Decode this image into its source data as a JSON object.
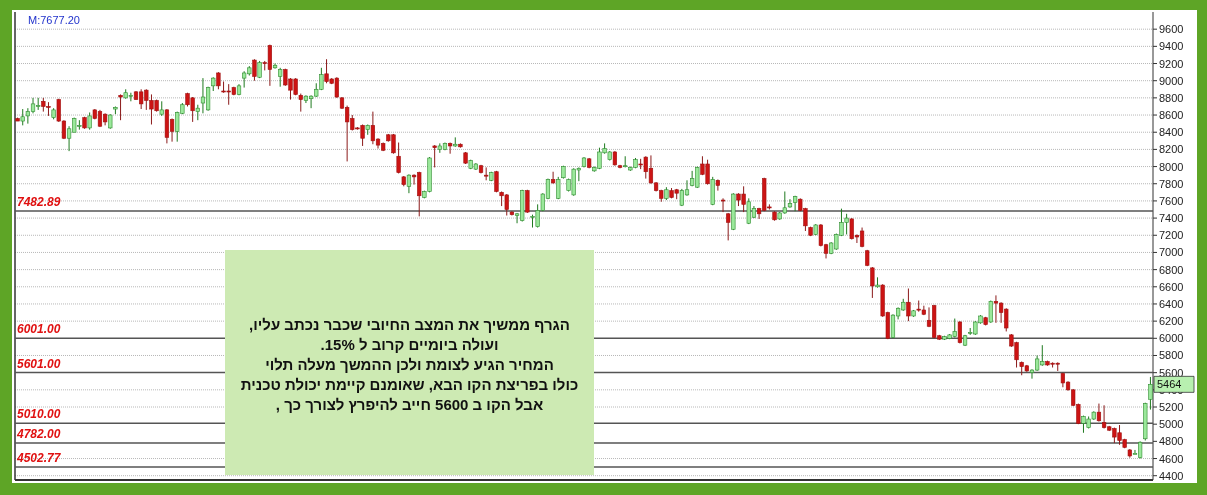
{
  "chart_data": {
    "type": "candlestick",
    "categories": [
      null,
      null,
      null,
      null,
      null,
      null,
      null,
      null,
      null,
      null,
      null,
      null,
      null,
      null,
      null,
      null,
      null,
      null,
      null,
      null,
      null,
      null,
      null,
      null,
      null,
      null,
      null,
      null,
      null,
      null,
      null,
      null,
      null,
      null,
      null,
      null,
      null,
      null,
      null,
      null,
      null,
      null,
      null,
      null,
      null,
      null,
      null,
      null,
      null,
      null,
      null,
      null,
      null,
      null,
      null,
      null,
      null,
      null,
      null,
      null,
      null,
      null,
      null,
      null,
      null,
      null,
      null,
      null,
      null,
      null,
      null,
      null,
      null,
      null,
      null,
      null,
      null,
      null,
      null,
      null,
      null,
      null,
      null,
      null,
      null,
      null,
      null,
      null,
      null,
      null,
      null,
      null,
      null,
      null,
      null,
      null,
      null,
      null,
      null,
      null,
      null,
      null,
      null,
      null,
      null,
      null,
      null,
      null,
      null,
      null,
      null,
      null,
      null,
      null,
      null,
      null,
      null,
      null,
      null,
      null,
      null,
      null,
      null,
      null,
      null,
      null,
      null,
      null,
      null,
      null,
      null,
      null,
      null,
      null,
      null,
      null,
      null,
      null,
      null,
      null,
      null,
      null,
      null,
      null,
      null,
      null,
      null,
      null,
      null,
      null,
      null,
      null,
      null,
      null,
      null,
      null,
      null,
      null,
      null,
      null,
      null,
      null,
      null,
      null,
      null,
      null,
      null,
      null,
      null,
      null,
      null,
      null,
      null,
      null,
      null,
      null,
      null,
      null,
      null,
      null,
      null,
      null,
      null,
      null,
      null,
      null,
      null,
      null,
      null,
      null,
      null,
      null,
      null,
      null,
      null,
      null,
      null,
      null,
      null,
      null,
      null,
      null,
      null,
      null,
      null,
      null,
      null,
      null,
      null,
      null,
      null,
      null,
      null,
      null,
      null,
      null,
      null,
      null,
      null,
      null,
      null
    ],
    "ohlc": [
      [
        8560,
        8570,
        8530,
        8530
      ],
      [
        8530,
        8670,
        8480,
        8580
      ],
      [
        8590,
        8680,
        8500,
        8640
      ],
      [
        8640,
        8800,
        8620,
        8730
      ],
      [
        8700,
        8800,
        8660,
        8710
      ],
      [
        8760,
        8800,
        8640,
        8700
      ],
      [
        8700,
        8750,
        8590,
        8690
      ],
      [
        8570,
        8680,
        8550,
        8660
      ],
      [
        8780,
        8790,
        8520,
        8530
      ],
      [
        8530,
        8540,
        8320,
        8330
      ],
      [
        8330,
        8470,
        8180,
        8440
      ],
      [
        8400,
        8570,
        8400,
        8560
      ],
      [
        8470,
        8540,
        8430,
        8480
      ],
      [
        8570,
        8580,
        8440,
        8450
      ],
      [
        8450,
        8630,
        8430,
        8590
      ],
      [
        8660,
        8670,
        8550,
        8560
      ],
      [
        8640,
        8660,
        8460,
        8470
      ],
      [
        8610,
        8620,
        8480,
        8520
      ],
      [
        8450,
        8610,
        8440,
        8600
      ],
      [
        8670,
        8700,
        8610,
        8690
      ],
      [
        8830,
        8840,
        8540,
        8810
      ],
      [
        8800,
        8900,
        8790,
        8860
      ],
      [
        8820,
        8860,
        8760,
        8830
      ],
      [
        8870,
        8880,
        8780,
        8780
      ],
      [
        8870,
        8900,
        8670,
        8730
      ],
      [
        8890,
        8900,
        8660,
        8770
      ],
      [
        8770,
        8840,
        8490,
        8670
      ],
      [
        8770,
        8780,
        8640,
        8650
      ],
      [
        8610,
        8760,
        8590,
        8660
      ],
      [
        8660,
        8670,
        8270,
        8340
      ],
      [
        8550,
        8560,
        8290,
        8410
      ],
      [
        8410,
        8640,
        8290,
        8630
      ],
      [
        8620,
        8740,
        8610,
        8720
      ],
      [
        8850,
        8860,
        8700,
        8720
      ],
      [
        8800,
        8810,
        8520,
        8650
      ],
      [
        8640,
        8720,
        8540,
        8680
      ],
      [
        8740,
        9030,
        8620,
        8810
      ],
      [
        8660,
        8930,
        8650,
        8920
      ],
      [
        8940,
        9040,
        8880,
        9030
      ],
      [
        9090,
        9100,
        8900,
        8940
      ],
      [
        8880,
        8990,
        8860,
        8870
      ],
      [
        8880,
        8960,
        8720,
        8870
      ],
      [
        8920,
        8930,
        8830,
        8840
      ],
      [
        8840,
        8960,
        8830,
        8940
      ],
      [
        9030,
        9110,
        8920,
        9090
      ],
      [
        9080,
        9170,
        9060,
        9150
      ],
      [
        9240,
        9250,
        9000,
        9050
      ],
      [
        9040,
        9230,
        9030,
        9210
      ],
      [
        9210,
        9230,
        9120,
        9200
      ],
      [
        9410,
        9420,
        8940,
        9130
      ],
      [
        9150,
        9200,
        9140,
        9180
      ],
      [
        9050,
        9150,
        8930,
        9130
      ],
      [
        9130,
        9140,
        8940,
        8950
      ],
      [
        9020,
        9030,
        8780,
        8890
      ],
      [
        9020,
        9030,
        8830,
        8840
      ],
      [
        8830,
        8850,
        8640,
        8780
      ],
      [
        8770,
        8830,
        8740,
        8820
      ],
      [
        8790,
        8830,
        8680,
        8820
      ],
      [
        8820,
        8970,
        8810,
        8900
      ],
      [
        8900,
        9150,
        8890,
        9070
      ],
      [
        9080,
        9250,
        8970,
        8990
      ],
      [
        9020,
        9030,
        8960,
        8970
      ],
      [
        9030,
        9040,
        8800,
        8810
      ],
      [
        8800,
        8810,
        8670,
        8680
      ],
      [
        8690,
        8710,
        8060,
        8520
      ],
      [
        8560,
        8600,
        8420,
        8430
      ],
      [
        8450,
        8460,
        8430,
        8440
      ],
      [
        8480,
        8490,
        8240,
        8330
      ],
      [
        8430,
        8490,
        8370,
        8480
      ],
      [
        8480,
        8640,
        8260,
        8300
      ],
      [
        8320,
        8330,
        8210,
        8250
      ],
      [
        8270,
        8280,
        8180,
        8190
      ],
      [
        8370,
        8380,
        8290,
        8300
      ],
      [
        8370,
        8380,
        8150,
        8160
      ],
      [
        8120,
        8280,
        7920,
        7930
      ],
      [
        7880,
        7890,
        7770,
        7790
      ],
      [
        7770,
        7910,
        7690,
        7900
      ],
      [
        7900,
        7910,
        7790,
        7880
      ],
      [
        7930,
        7940,
        7420,
        7660
      ],
      [
        7640,
        7720,
        7630,
        7710
      ],
      [
        7710,
        8110,
        7700,
        8100
      ],
      [
        8240,
        8250,
        7990,
        8220
      ],
      [
        8200,
        8270,
        8160,
        8240
      ],
      [
        8200,
        8280,
        8190,
        8270
      ],
      [
        8270,
        8280,
        8150,
        8240
      ],
      [
        8240,
        8340,
        8230,
        8260
      ],
      [
        8260,
        8270,
        8220,
        8230
      ],
      [
        8160,
        8170,
        8030,
        8040
      ],
      [
        7980,
        8080,
        7970,
        8070
      ],
      [
        7970,
        8040,
        7960,
        8030
      ],
      [
        8010,
        8020,
        7920,
        7930
      ],
      [
        7900,
        7990,
        7840,
        7890
      ],
      [
        7840,
        7940,
        7830,
        7930
      ],
      [
        7940,
        7950,
        7700,
        7710
      ],
      [
        7700,
        7710,
        7540,
        7660
      ],
      [
        7670,
        7680,
        7430,
        7500
      ],
      [
        7470,
        7480,
        7430,
        7440
      ],
      [
        7430,
        7460,
        7340,
        7450
      ],
      [
        7370,
        7730,
        7360,
        7720
      ],
      [
        7720,
        7730,
        7460,
        7470
      ],
      [
        7410,
        7440,
        7290,
        7420
      ],
      [
        7300,
        7560,
        7290,
        7490
      ],
      [
        7490,
        7690,
        7480,
        7680
      ],
      [
        7630,
        7860,
        7620,
        7850
      ],
      [
        7850,
        7940,
        7800,
        7810
      ],
      [
        7630,
        7880,
        7620,
        7850
      ],
      [
        7870,
        8010,
        7860,
        8000
      ],
      [
        7720,
        7860,
        7710,
        7850
      ],
      [
        7670,
        7980,
        7660,
        7970
      ],
      [
        7960,
        7990,
        7830,
        7980
      ],
      [
        8000,
        8110,
        7990,
        8100
      ],
      [
        8090,
        8100,
        7980,
        7990
      ],
      [
        7950,
        8000,
        7940,
        7990
      ],
      [
        7980,
        8220,
        7970,
        8170
      ],
      [
        8160,
        8270,
        8150,
        8210
      ],
      [
        8080,
        8180,
        8070,
        8170
      ],
      [
        8170,
        8180,
        8010,
        8020
      ],
      [
        8010,
        8020,
        7980,
        7990
      ],
      [
        8000,
        8120,
        7990,
        8010
      ],
      [
        7960,
        8000,
        7950,
        7990
      ],
      [
        7990,
        8100,
        7980,
        8080
      ],
      [
        8030,
        8090,
        7970,
        8020
      ],
      [
        8110,
        8120,
        7860,
        7940
      ],
      [
        7980,
        8130,
        7800,
        7810
      ],
      [
        7810,
        7820,
        7710,
        7720
      ],
      [
        7720,
        7730,
        7590,
        7630
      ],
      [
        7630,
        7760,
        7610,
        7730
      ],
      [
        7720,
        7750,
        7630,
        7640
      ],
      [
        7730,
        7740,
        7620,
        7690
      ],
      [
        7550,
        7740,
        7540,
        7720
      ],
      [
        7670,
        7840,
        7660,
        7730
      ],
      [
        7780,
        7950,
        7770,
        7860
      ],
      [
        7760,
        8000,
        7750,
        7990
      ],
      [
        8030,
        8120,
        7900,
        7910
      ],
      [
        8030,
        8080,
        7790,
        7800
      ],
      [
        7560,
        7880,
        7550,
        7850
      ],
      [
        7840,
        7850,
        7720,
        7780
      ],
      [
        7610,
        7630,
        7470,
        7600
      ],
      [
        7450,
        7460,
        7140,
        7350
      ],
      [
        7270,
        7690,
        7260,
        7680
      ],
      [
        7680,
        7690,
        7540,
        7610
      ],
      [
        7680,
        7770,
        7470,
        7560
      ],
      [
        7340,
        7630,
        7330,
        7590
      ],
      [
        7410,
        7540,
        7400,
        7510
      ],
      [
        7510,
        7520,
        7390,
        7450
      ],
      [
        7860,
        7870,
        7480,
        7490
      ],
      [
        7530,
        7560,
        7500,
        7520
      ],
      [
        7470,
        7480,
        7370,
        7380
      ],
      [
        7390,
        7470,
        7380,
        7460
      ],
      [
        7460,
        7710,
        7450,
        7520
      ],
      [
        7530,
        7620,
        7520,
        7570
      ],
      [
        7580,
        7660,
        7480,
        7650
      ],
      [
        7620,
        7630,
        7480,
        7490
      ],
      [
        7510,
        7520,
        7250,
        7310
      ],
      [
        7290,
        7300,
        7190,
        7200
      ],
      [
        7210,
        7330,
        7200,
        7320
      ],
      [
        7320,
        7330,
        7070,
        7080
      ],
      [
        7090,
        7100,
        6930,
        6990
      ],
      [
        6990,
        7120,
        6980,
        7110
      ],
      [
        7040,
        7220,
        7030,
        7210
      ],
      [
        7200,
        7510,
        7190,
        7350
      ],
      [
        7350,
        7450,
        7210,
        7400
      ],
      [
        7390,
        7400,
        7150,
        7160
      ],
      [
        7200,
        7210,
        7110,
        7180
      ],
      [
        7250,
        7290,
        7060,
        7070
      ],
      [
        7020,
        7030,
        6840,
        6850
      ],
      [
        6820,
        6830,
        6470,
        6610
      ],
      [
        6600,
        6710,
        6590,
        6620
      ],
      [
        6620,
        6630,
        6250,
        6260
      ],
      [
        6300,
        6310,
        5990,
        6000
      ],
      [
        6010,
        6280,
        6000,
        6270
      ],
      [
        6260,
        6360,
        6220,
        6350
      ],
      [
        6330,
        6460,
        6320,
        6420
      ],
      [
        6420,
        6580,
        6200,
        6260
      ],
      [
        6260,
        6330,
        6250,
        6320
      ],
      [
        6340,
        6440,
        6310,
        6330
      ],
      [
        6330,
        6380,
        6270,
        6280
      ],
      [
        6210,
        6360,
        6130,
        6140
      ],
      [
        6380,
        6390,
        6000,
        6010
      ],
      [
        6030,
        6040,
        5980,
        5990
      ],
      [
        5990,
        6030,
        5980,
        6020
      ],
      [
        6000,
        6050,
        5990,
        6040
      ],
      [
        6020,
        6230,
        6010,
        6080
      ],
      [
        6190,
        6200,
        5940,
        5950
      ],
      [
        5920,
        6040,
        5910,
        6030
      ],
      [
        6060,
        6120,
        6040,
        6070
      ],
      [
        6050,
        6200,
        6040,
        6190
      ],
      [
        6180,
        6270,
        6170,
        6260
      ],
      [
        6240,
        6250,
        6150,
        6160
      ],
      [
        6190,
        6440,
        6180,
        6430
      ],
      [
        6430,
        6500,
        6180,
        6410
      ],
      [
        6410,
        6420,
        6180,
        6300
      ],
      [
        6340,
        6350,
        6080,
        6120
      ],
      [
        6040,
        6050,
        5900,
        5910
      ],
      [
        5950,
        5960,
        5660,
        5750
      ],
      [
        5720,
        5730,
        5570,
        5670
      ],
      [
        5680,
        5690,
        5610,
        5620
      ],
      [
        5600,
        5640,
        5530,
        5630
      ],
      [
        5630,
        5800,
        5620,
        5760
      ],
      [
        5690,
        5920,
        5680,
        5730
      ],
      [
        5730,
        5740,
        5680,
        5690
      ],
      [
        5710,
        5720,
        5660,
        5700
      ],
      [
        5710,
        5720,
        5620,
        5700
      ],
      [
        5590,
        5600,
        5430,
        5480
      ],
      [
        5490,
        5500,
        5390,
        5400
      ],
      [
        5400,
        5410,
        5210,
        5220
      ],
      [
        5230,
        5240,
        5000,
        5010
      ],
      [
        5010,
        5100,
        4900,
        5090
      ],
      [
        4960,
        5090,
        4950,
        5060
      ],
      [
        5060,
        5150,
        5050,
        5140
      ],
      [
        5140,
        5240,
        5030,
        5040
      ],
      [
        5020,
        5220,
        4950,
        4960
      ],
      [
        4970,
        4980,
        4920,
        4930
      ],
      [
        4950,
        4960,
        4780,
        4850
      ],
      [
        4900,
        4990,
        4760,
        4810
      ],
      [
        4820,
        4830,
        4720,
        4730
      ],
      [
        4700,
        4710,
        4610,
        4630
      ],
      [
        4660,
        4700,
        4660,
        4660
      ],
      [
        4610,
        4800,
        4600,
        4790
      ],
      [
        4830,
        5250,
        4810,
        5240
      ],
      [
        5290,
        5550,
        5170,
        5464
      ]
    ],
    "ylim": [
      4350,
      9800
    ],
    "yticks": [
      4400,
      4600,
      4800,
      5000,
      5200,
      5400,
      5600,
      5800,
      6000,
      6200,
      6400,
      6600,
      6800,
      7000,
      7200,
      7400,
      7600,
      7800,
      8000,
      8200,
      8400,
      8600,
      8800,
      9000,
      9200,
      9400,
      9600
    ],
    "grid": "y",
    "ref_lines": [
      {
        "axis": "y",
        "value": 7482.89,
        "label": "7482.89"
      },
      {
        "axis": "y",
        "value": 6001.0,
        "label": "6001.00"
      },
      {
        "axis": "y",
        "value": 5601.0,
        "label": "5601.00"
      },
      {
        "axis": "y",
        "value": 5010.0,
        "label": "5010.00"
      },
      {
        "axis": "y",
        "value": 4782.0,
        "label": "4782.00"
      },
      {
        "axis": "y",
        "value": 4502.77,
        "label": "4502.77"
      }
    ],
    "annotations": [
      "M:7677.20",
      "הגרף ממשיך את המצב החיובי שכבר נכתב עליו,",
      "ועולה ביומיים קרוב ל 15%.",
      "המחיר הגיע לצומת ולכן ההמשך מעלה תלוי",
      "כולו בפריצת הקו הבא, שאומנם קיימת יכולת טכנית",
      "אבל הקו ב 5600 חייב להיפרץ לצורך כך ,",
      "5464"
    ]
  }
}
